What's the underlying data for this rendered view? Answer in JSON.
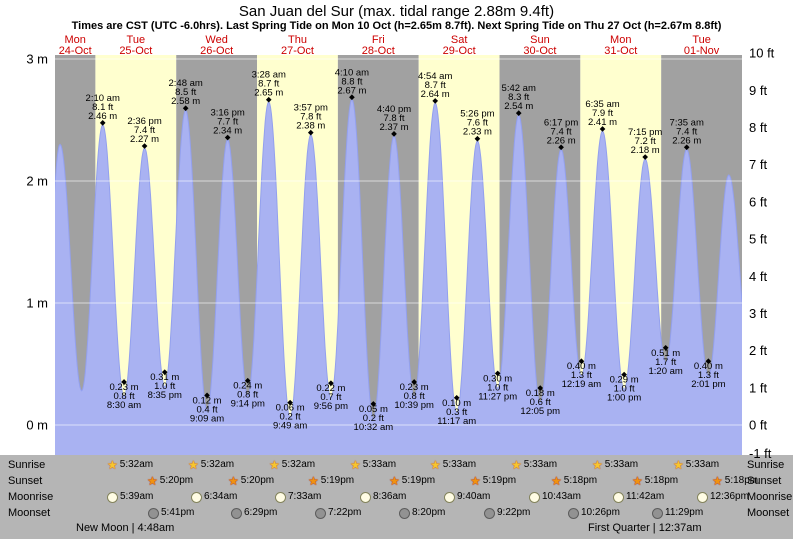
{
  "title": "San Juan del Sur (max. tidal range 2.88m 9.4ft)",
  "subtitle": "Times are CST (UTC -6.0hrs). Last Spring Tide on Mon 10 Oct (h=2.65m 8.7ft). Next Spring Tide on Thu 27 Oct (h=2.67m 8.8ft)",
  "colors": {
    "band_gray": "#a1a1a1",
    "band_yellow": "#ffffcf",
    "tide_fill": "#a9b2f2",
    "tide_stroke": "#93a0ee",
    "footer_bg": "#b5b5b5",
    "day_label": "#cc0000",
    "grid_line": "#ffffff",
    "text": "#000000"
  },
  "days": [
    {
      "weekday": "Mon",
      "date": "24-Oct"
    },
    {
      "weekday": "Tue",
      "date": "25-Oct"
    },
    {
      "weekday": "Wed",
      "date": "26-Oct"
    },
    {
      "weekday": "Thu",
      "date": "27-Oct"
    },
    {
      "weekday": "Fri",
      "date": "28-Oct"
    },
    {
      "weekday": "Sat",
      "date": "29-Oct"
    },
    {
      "weekday": "Sun",
      "date": "30-Oct"
    },
    {
      "weekday": "Mon",
      "date": "31-Oct"
    },
    {
      "weekday": "Tue",
      "date": "01-Nov"
    }
  ],
  "y_axis_left": [
    {
      "label": "3 m",
      "m": 3
    },
    {
      "label": "2 m",
      "m": 2
    },
    {
      "label": "1 m",
      "m": 1
    },
    {
      "label": "0 m",
      "m": 0
    }
  ],
  "y_axis_right": [
    {
      "label": "10 ft",
      "ft": 10
    },
    {
      "label": "9 ft",
      "ft": 9
    },
    {
      "label": "8 ft",
      "ft": 8
    },
    {
      "label": "7 ft",
      "ft": 7
    },
    {
      "label": "6 ft",
      "ft": 6
    },
    {
      "label": "5 ft",
      "ft": 5
    },
    {
      "label": "4 ft",
      "ft": 4
    },
    {
      "label": "3 ft",
      "ft": 3
    },
    {
      "label": "2 ft",
      "ft": 2
    },
    {
      "label": "1 ft",
      "ft": 1
    },
    {
      "label": "0 ft",
      "ft": 0
    },
    {
      "label": "-1 ft",
      "ft": -1
    }
  ],
  "chart_data": {
    "type": "area",
    "title": "San Juan del Sur tide heights",
    "x_range": "Mon 24-Oct noon to Wed 02-Nov midnight",
    "y_unit_left": "m",
    "y_unit_right": "ft",
    "ylim_m": [
      -0.3,
      3.05
    ],
    "max_tidal_range": "2.88m 9.4ft",
    "tides": [
      {
        "day": 0,
        "time": "7:45 am",
        "type": "low",
        "m": 0.2,
        "show_label": false,
        "estimated": true
      },
      {
        "day": 0,
        "time": "1:30 pm",
        "type": "high",
        "m": 2.3,
        "show_label": false,
        "estimated": true
      },
      {
        "day": 0,
        "time": "7:55 pm",
        "type": "low",
        "m": 0.28,
        "show_label": false,
        "estimated": true
      },
      {
        "day": 1,
        "time": "2:10 am",
        "type": "high",
        "m": 2.46,
        "m_label": "2.46 m",
        "ft_label": "8.1 ft",
        "show_label": true
      },
      {
        "day": 1,
        "time": "8:30 am",
        "type": "low",
        "m": 0.23,
        "m_label": "0.23 m",
        "ft_label": "0.8 ft",
        "show_label": true
      },
      {
        "day": 1,
        "time": "2:36 pm",
        "type": "high",
        "m": 2.27,
        "m_label": "2.27 m",
        "ft_label": "7.4 ft",
        "show_label": true
      },
      {
        "day": 1,
        "time": "8:35 pm",
        "type": "low",
        "m": 0.31,
        "m_label": "0.31 m",
        "ft_label": "1.0 ft",
        "show_label": true
      },
      {
        "day": 2,
        "time": "2:48 am",
        "type": "high",
        "m": 2.58,
        "m_label": "2.58 m",
        "ft_label": "8.5 ft",
        "show_label": true
      },
      {
        "day": 2,
        "time": "9:09 am",
        "type": "low",
        "m": 0.12,
        "m_label": "0.12 m",
        "ft_label": "0.4 ft",
        "show_label": true
      },
      {
        "day": 2,
        "time": "3:16 pm",
        "type": "high",
        "m": 2.34,
        "m_label": "2.34 m",
        "ft_label": "7.7 ft",
        "show_label": true
      },
      {
        "day": 2,
        "time": "9:14 pm",
        "type": "low",
        "m": 0.24,
        "m_label": "0.24 m",
        "ft_label": "0.8 ft",
        "show_label": true
      },
      {
        "day": 3,
        "time": "3:28 am",
        "type": "high",
        "m": 2.65,
        "m_label": "2.65 m",
        "ft_label": "8.7 ft",
        "show_label": true
      },
      {
        "day": 3,
        "time": "9:49 am",
        "type": "low",
        "m": 0.06,
        "m_label": "0.06 m",
        "ft_label": "0.2 ft",
        "show_label": true
      },
      {
        "day": 3,
        "time": "3:57 pm",
        "type": "high",
        "m": 2.38,
        "m_label": "2.38 m",
        "ft_label": "7.8 ft",
        "show_label": true
      },
      {
        "day": 3,
        "time": "9:56 pm",
        "type": "low",
        "m": 0.22,
        "m_label": "0.22 m",
        "ft_label": "0.7 ft",
        "show_label": true
      },
      {
        "day": 4,
        "time": "4:10 am",
        "type": "high",
        "m": 2.67,
        "m_label": "2.67 m",
        "ft_label": "8.8 ft",
        "show_label": true
      },
      {
        "day": 4,
        "time": "10:32 am",
        "type": "low",
        "m": 0.05,
        "m_label": "0.05 m",
        "ft_label": "0.2 ft",
        "show_label": true
      },
      {
        "day": 4,
        "time": "4:40 pm",
        "type": "high",
        "m": 2.37,
        "m_label": "2.37 m",
        "ft_label": "7.8 ft",
        "show_label": true
      },
      {
        "day": 4,
        "time": "10:39 pm",
        "type": "low",
        "m": 0.23,
        "m_label": "0.23 m",
        "ft_label": "0.8 ft",
        "show_label": true
      },
      {
        "day": 5,
        "time": "4:54 am",
        "type": "high",
        "m": 2.64,
        "m_label": "2.64 m",
        "ft_label": "8.7 ft",
        "show_label": true
      },
      {
        "day": 5,
        "time": "11:17 am",
        "type": "low",
        "m": 0.1,
        "m_label": "0.10 m",
        "ft_label": "0.3 ft",
        "show_label": true
      },
      {
        "day": 5,
        "time": "5:26 pm",
        "type": "high",
        "m": 2.33,
        "m_label": "2.33 m",
        "ft_label": "7.6 ft",
        "show_label": true
      },
      {
        "day": 5,
        "time": "11:27 pm",
        "type": "low",
        "m": 0.3,
        "m_label": "0.30 m",
        "ft_label": "1.0 ft",
        "show_label": true
      },
      {
        "day": 6,
        "time": "5:42 am",
        "type": "high",
        "m": 2.54,
        "m_label": "2.54 m",
        "ft_label": "8.3 ft",
        "show_label": true
      },
      {
        "day": 6,
        "time": "12:05 pm",
        "type": "low",
        "m": 0.18,
        "m_label": "0.18 m",
        "ft_label": "0.6 ft",
        "show_label": true
      },
      {
        "day": 6,
        "time": "6:17 pm",
        "type": "high",
        "m": 2.26,
        "m_label": "2.26 m",
        "ft_label": "7.4 ft",
        "show_label": true
      },
      {
        "day": 7,
        "time": "12:19 am",
        "type": "low",
        "m": 0.4,
        "m_label": "0.40 m",
        "ft_label": "1.3 ft",
        "show_label": true
      },
      {
        "day": 7,
        "time": "6:35 am",
        "type": "high",
        "m": 2.41,
        "m_label": "2.41 m",
        "ft_label": "7.9 ft",
        "show_label": true
      },
      {
        "day": 7,
        "time": "1:00 pm",
        "type": "low",
        "m": 0.29,
        "m_label": "0.29 m",
        "ft_label": "1.0 ft",
        "show_label": true
      },
      {
        "day": 7,
        "time": "7:15 pm",
        "type": "high",
        "m": 2.18,
        "m_label": "2.18 m",
        "ft_label": "7.2 ft",
        "show_label": true
      },
      {
        "day": 8,
        "time": "1:20 am",
        "type": "low",
        "m": 0.51,
        "m_label": "0.51 m",
        "ft_label": "1.7 ft",
        "show_label": true
      },
      {
        "day": 8,
        "time": "7:35 am",
        "type": "high",
        "m": 2.26,
        "m_label": "2.26 m",
        "ft_label": "7.4 ft",
        "show_label": true
      },
      {
        "day": 8,
        "time": "2:01 pm",
        "type": "low",
        "m": 0.4,
        "m_label": "0.40 m",
        "ft_label": "1.3 ft",
        "show_label": true
      },
      {
        "day": 8,
        "time": "8:05 pm",
        "type": "high",
        "m": 2.05,
        "show_label": false,
        "estimated": true
      },
      {
        "day": 9,
        "time": "2:40 am",
        "type": "low",
        "m": 0.45,
        "show_label": false,
        "estimated": true
      }
    ]
  },
  "astronomy": {
    "rows": [
      {
        "label": "Sunrise",
        "icon": "star-rise",
        "entries": [
          {
            "day": 1,
            "time": "5:32am"
          },
          {
            "day": 2,
            "time": "5:32am"
          },
          {
            "day": 3,
            "time": "5:32am"
          },
          {
            "day": 4,
            "time": "5:33am"
          },
          {
            "day": 5,
            "time": "5:33am"
          },
          {
            "day": 6,
            "time": "5:33am"
          },
          {
            "day": 7,
            "time": "5:33am"
          },
          {
            "day": 8,
            "time": "5:33am"
          }
        ]
      },
      {
        "label": "Sunset",
        "icon": "star-set",
        "entries": [
          {
            "day": 1,
            "time": "5:20pm"
          },
          {
            "day": 2,
            "time": "5:20pm"
          },
          {
            "day": 3,
            "time": "5:19pm"
          },
          {
            "day": 4,
            "time": "5:19pm"
          },
          {
            "day": 5,
            "time": "5:19pm"
          },
          {
            "day": 6,
            "time": "5:18pm"
          },
          {
            "day": 7,
            "time": "5:18pm"
          },
          {
            "day": 8,
            "time": "5:18pm"
          }
        ]
      },
      {
        "label": "Moonrise",
        "icon": "moon-rise",
        "entries": [
          {
            "day": 1,
            "time": "5:39am"
          },
          {
            "day": 2,
            "time": "6:34am"
          },
          {
            "day": 3,
            "time": "7:33am"
          },
          {
            "day": 4,
            "time": "8:36am"
          },
          {
            "day": 5,
            "time": "9:40am"
          },
          {
            "day": 6,
            "time": "10:43am"
          },
          {
            "day": 7,
            "time": "11:42am"
          },
          {
            "day": 8,
            "time": "12:36pm"
          }
        ]
      },
      {
        "label": "Moonset",
        "icon": "moon-set",
        "entries": [
          {
            "day": 1,
            "time": "5:41pm"
          },
          {
            "day": 2,
            "time": "6:29pm"
          },
          {
            "day": 3,
            "time": "7:22pm"
          },
          {
            "day": 4,
            "time": "8:20pm"
          },
          {
            "day": 5,
            "time": "9:22pm"
          },
          {
            "day": 6,
            "time": "10:26pm"
          },
          {
            "day": 7,
            "time": "11:29pm"
          }
        ]
      }
    ],
    "footer_left": "New Moon | 4:48am",
    "footer_right": "First Quarter | 12:37am"
  }
}
